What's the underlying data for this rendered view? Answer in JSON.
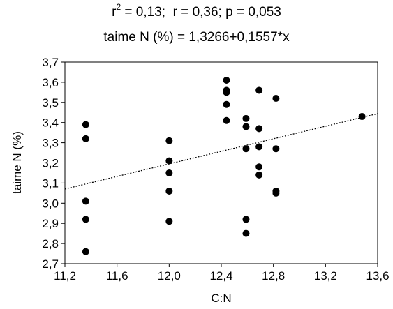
{
  "title_parts": {
    "r_symbol": "r",
    "r_exponent": "2",
    "rest": " = 0,13;  r = 0,36; p = 0,053"
  },
  "subtitle": "taime N (%) = 1,3266+0,1557*x",
  "chart_data": {
    "type": "scatter",
    "xlabel": "C:N",
    "ylabel": "taime N (%)",
    "xlim": [
      11.2,
      13.6
    ],
    "ylim": [
      2.7,
      3.7
    ],
    "xticks": [
      11.2,
      11.6,
      12.0,
      12.4,
      12.8,
      13.2,
      13.6
    ],
    "xtick_labels": [
      "11,2",
      "11,6",
      "12,0",
      "12,4",
      "12,8",
      "13,2",
      "13,6"
    ],
    "yticks": [
      2.7,
      2.8,
      2.9,
      3.0,
      3.1,
      3.2,
      3.3,
      3.4,
      3.5,
      3.6,
      3.7
    ],
    "ytick_labels": [
      "2,7",
      "2,8",
      "2,9",
      "3,0",
      "3,1",
      "3,2",
      "3,3",
      "3,4",
      "3,5",
      "3,6",
      "3,7"
    ],
    "grid": false,
    "points": [
      {
        "x": 11.36,
        "y": 3.39
      },
      {
        "x": 11.36,
        "y": 3.32
      },
      {
        "x": 11.36,
        "y": 3.01
      },
      {
        "x": 11.36,
        "y": 2.92
      },
      {
        "x": 11.36,
        "y": 2.76
      },
      {
        "x": 12.0,
        "y": 3.31
      },
      {
        "x": 12.0,
        "y": 3.21
      },
      {
        "x": 12.0,
        "y": 3.15
      },
      {
        "x": 12.0,
        "y": 3.06
      },
      {
        "x": 12.0,
        "y": 2.91
      },
      {
        "x": 12.44,
        "y": 3.61
      },
      {
        "x": 12.44,
        "y": 3.56
      },
      {
        "x": 12.44,
        "y": 3.55
      },
      {
        "x": 12.44,
        "y": 3.49
      },
      {
        "x": 12.44,
        "y": 3.41
      },
      {
        "x": 12.59,
        "y": 3.42
      },
      {
        "x": 12.59,
        "y": 3.38
      },
      {
        "x": 12.59,
        "y": 3.27
      },
      {
        "x": 12.59,
        "y": 2.92
      },
      {
        "x": 12.59,
        "y": 2.85
      },
      {
        "x": 12.69,
        "y": 3.56
      },
      {
        "x": 12.69,
        "y": 3.37
      },
      {
        "x": 12.69,
        "y": 3.28
      },
      {
        "x": 12.69,
        "y": 3.18
      },
      {
        "x": 12.69,
        "y": 3.14
      },
      {
        "x": 12.82,
        "y": 3.52
      },
      {
        "x": 12.82,
        "y": 3.27
      },
      {
        "x": 12.82,
        "y": 3.06
      },
      {
        "x": 12.82,
        "y": 3.05
      },
      {
        "x": 13.48,
        "y": 3.43
      }
    ],
    "regression": {
      "intercept": 1.3266,
      "slope": 0.1557,
      "style": "dotted"
    },
    "colors": {
      "points": "#000000",
      "line": "#000000",
      "axes": "#000000"
    }
  }
}
